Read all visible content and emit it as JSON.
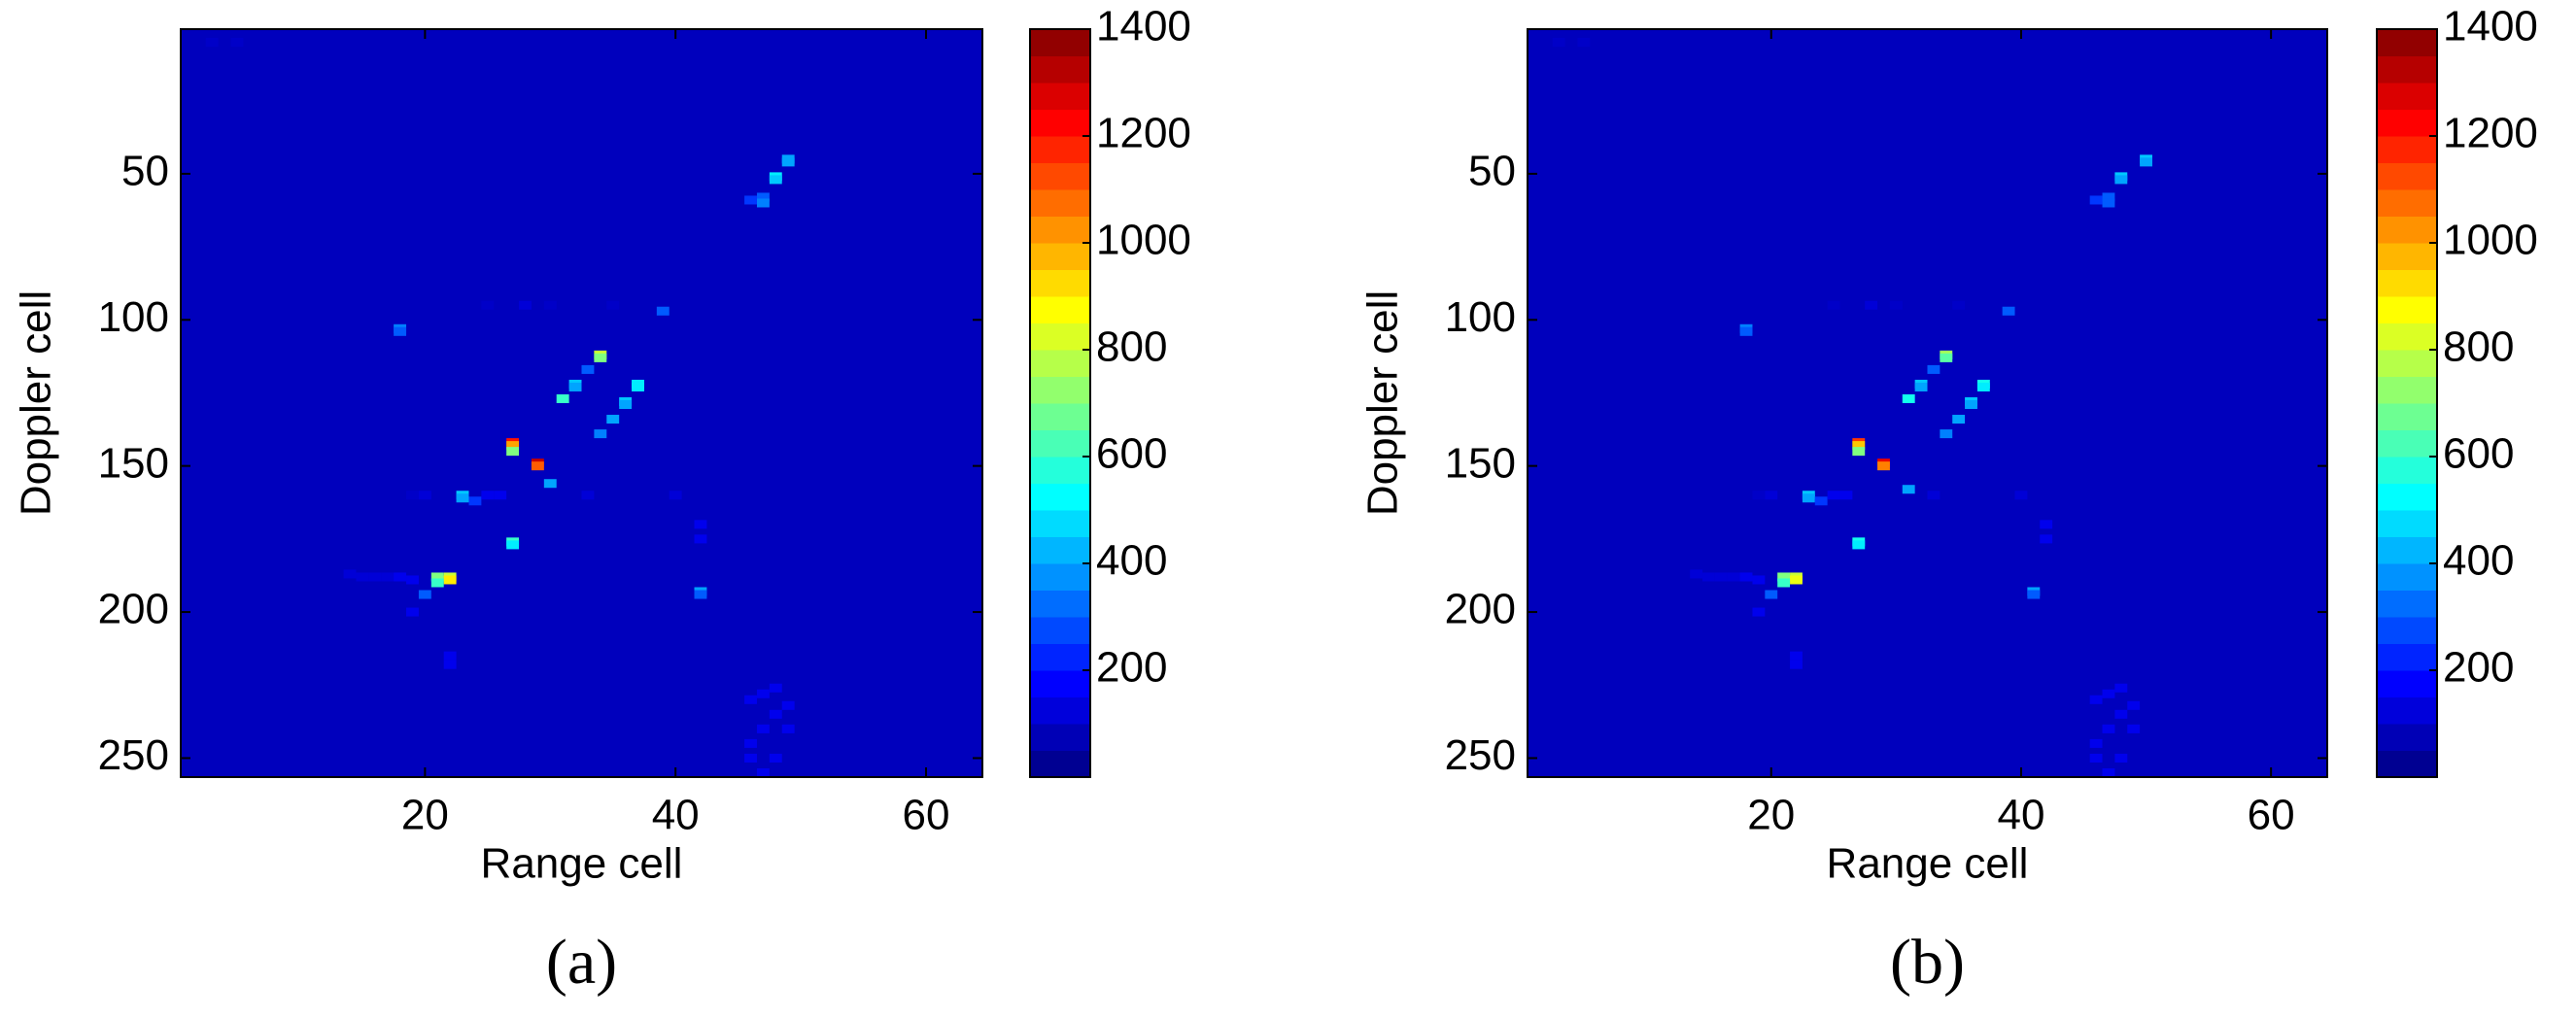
{
  "chart_data": [
    {
      "type": "heatmap",
      "panel_label": "(a)",
      "xlabel": "Range cell",
      "ylabel": "Doppler cell",
      "colormap": "jet",
      "xlim": [
        0.5,
        64.5
      ],
      "ylim": [
        256.5,
        0.5
      ],
      "xticks": [
        20,
        40,
        60
      ],
      "yticks": [
        50,
        100,
        150,
        200,
        250
      ],
      "clim": [
        0,
        1400
      ],
      "cticks": [
        200,
        400,
        600,
        800,
        1000,
        1200,
        1400
      ],
      "x": [
        49,
        49,
        48,
        48,
        47,
        47,
        46,
        18,
        18,
        39,
        34,
        34,
        33,
        32,
        32,
        37,
        37,
        36,
        36,
        31,
        35,
        34,
        27,
        27,
        27,
        29,
        29,
        30,
        23,
        23,
        24,
        27,
        27,
        22,
        21,
        22,
        21,
        42,
        42,
        20,
        14,
        15,
        16,
        17,
        18,
        19,
        25,
        26,
        33,
        20,
        19,
        42,
        42,
        22,
        22,
        40,
        28,
        25,
        30,
        35,
        46,
        46,
        47,
        48,
        47,
        48,
        49,
        3,
        5,
        19,
        46,
        47,
        48,
        49
      ],
      "y": [
        45,
        46,
        51,
        52,
        58,
        60,
        59,
        103,
        104,
        97,
        112,
        113,
        117,
        122,
        123,
        122,
        123,
        128,
        129,
        127,
        134,
        139,
        142,
        143,
        145,
        149,
        150,
        156,
        160,
        161,
        162,
        176,
        177,
        188,
        188,
        189,
        190,
        193,
        194,
        194,
        187,
        188,
        188,
        188,
        188,
        189,
        160,
        160,
        160,
        160,
        160,
        170,
        175,
        215,
        218,
        160,
        95,
        95,
        95,
        95,
        245,
        250,
        240,
        235,
        255,
        250,
        240,
        5,
        5,
        200,
        230,
        228,
        226,
        232
      ],
      "values": [
        400,
        400,
        500,
        450,
        300,
        350,
        250,
        350,
        300,
        300,
        800,
        700,
        300,
        450,
        400,
        500,
        500,
        450,
        400,
        600,
        400,
        350,
        1200,
        1000,
        700,
        1300,
        1100,
        400,
        450,
        400,
        250,
        600,
        500,
        800,
        700,
        900,
        600,
        400,
        300,
        300,
        120,
        120,
        120,
        120,
        150,
        150,
        150,
        150,
        120,
        120,
        100,
        150,
        150,
        150,
        150,
        120,
        120,
        100,
        100,
        100,
        150,
        150,
        150,
        150,
        150,
        150,
        150,
        100,
        100,
        150,
        150,
        150,
        150,
        150
      ]
    },
    {
      "type": "heatmap",
      "panel_label": "(b)",
      "xlabel": "Range cell",
      "ylabel": "Doppler cell",
      "colormap": "jet",
      "xlim": [
        0.5,
        64.5
      ],
      "ylim": [
        256.5,
        0.5
      ],
      "xticks": [
        20,
        40,
        60
      ],
      "yticks": [
        50,
        100,
        150,
        200,
        250
      ],
      "clim": [
        0,
        1400
      ],
      "cticks": [
        200,
        400,
        600,
        800,
        1000,
        1200,
        1400
      ],
      "x": [
        50,
        50,
        48,
        48,
        47,
        47,
        46,
        18,
        18,
        39,
        34,
        34,
        33,
        32,
        32,
        37,
        37,
        36,
        36,
        31,
        35,
        34,
        27,
        27,
        27,
        29,
        29,
        31,
        23,
        23,
        24,
        27,
        27,
        22,
        21,
        22,
        21,
        41,
        41,
        20,
        14,
        15,
        16,
        17,
        18,
        19,
        25,
        26,
        33,
        20,
        19,
        42,
        42,
        22,
        22,
        40,
        28,
        25,
        30,
        35,
        46,
        46,
        47,
        48,
        47,
        48,
        49,
        3,
        5,
        19,
        46,
        47,
        48,
        49
      ],
      "y": [
        45,
        46,
        51,
        52,
        58,
        60,
        59,
        103,
        104,
        97,
        112,
        113,
        117,
        122,
        123,
        122,
        123,
        128,
        129,
        127,
        134,
        139,
        142,
        143,
        145,
        149,
        150,
        158,
        160,
        161,
        162,
        176,
        177,
        188,
        188,
        189,
        190,
        193,
        194,
        194,
        187,
        188,
        188,
        188,
        188,
        189,
        160,
        160,
        160,
        160,
        160,
        170,
        175,
        215,
        218,
        160,
        95,
        95,
        95,
        95,
        245,
        250,
        240,
        235,
        255,
        250,
        240,
        5,
        5,
        200,
        230,
        228,
        226,
        232
      ],
      "values": [
        450,
        400,
        450,
        400,
        300,
        300,
        250,
        350,
        300,
        300,
        750,
        650,
        300,
        450,
        400,
        550,
        500,
        450,
        400,
        550,
        400,
        350,
        1150,
        950,
        700,
        1250,
        1050,
        400,
        450,
        400,
        250,
        550,
        500,
        800,
        700,
        850,
        600,
        400,
        300,
        300,
        120,
        120,
        120,
        120,
        150,
        150,
        150,
        150,
        120,
        120,
        100,
        150,
        150,
        150,
        150,
        120,
        120,
        100,
        100,
        100,
        150,
        150,
        150,
        150,
        150,
        150,
        150,
        100,
        100,
        150,
        150,
        150,
        150,
        150
      ]
    }
  ]
}
